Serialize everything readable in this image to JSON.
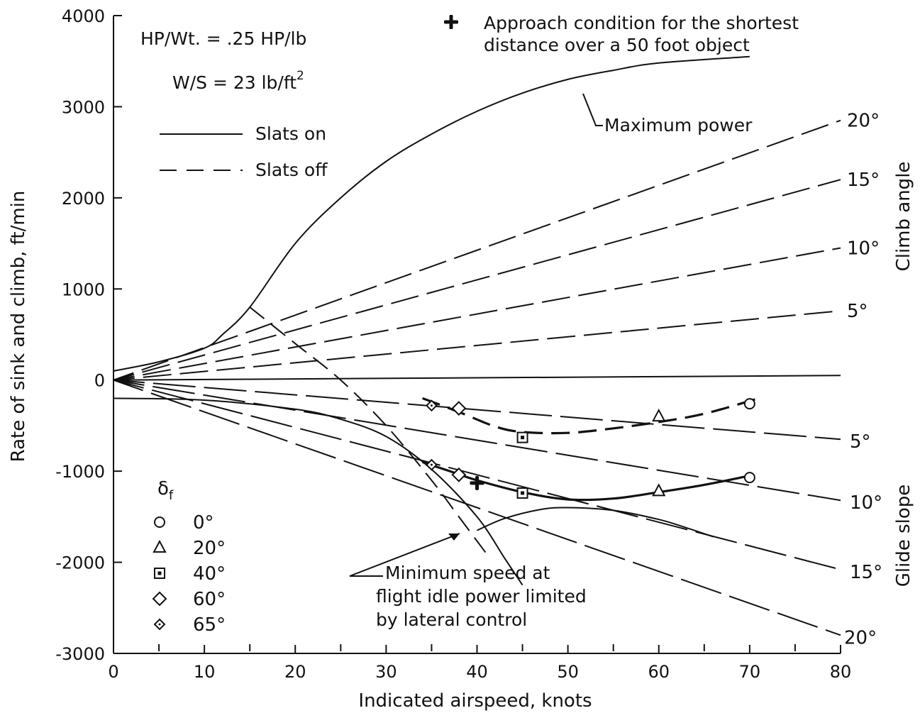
{
  "chart_data": {
    "type": "line",
    "title": "",
    "xlabel": "Indicated airspeed, knots",
    "ylabel": "Rate of sink and climb, ft/min",
    "xlim": [
      0,
      80
    ],
    "ylim": [
      -3000,
      4000
    ],
    "x_ticks": [
      0,
      10,
      20,
      30,
      40,
      50,
      60,
      70,
      80
    ],
    "y_ticks": [
      -3000,
      -2000,
      -1000,
      0,
      1000,
      2000,
      3000,
      4000
    ],
    "notes": {
      "power_loading": "HP/Wt. = .25 HP/lb",
      "wing_loading": "W/S = 23 lb/ft",
      "wing_loading_exp": "2",
      "approach_line1": "Approach condition for the shortest",
      "approach_line2": "distance over a 50 foot object",
      "max_power": "Maximum power",
      "min_speed_line1": "Minimum speed at",
      "min_speed_line2": "flight idle power limited",
      "min_speed_line3": "by lateral control"
    },
    "legend": {
      "slats_on": "Slats on",
      "slats_off": "Slats off",
      "flap_symbol": "δ",
      "flap_sub": "f"
    },
    "angle_axis": {
      "climb_title": "Climb angle",
      "glide_title": "Glide slope",
      "climb_labels": [
        "20°",
        "15°",
        "10°",
        "5°"
      ],
      "glide_labels": [
        "5°",
        "10°",
        "15°",
        "20°"
      ]
    },
    "flap_settings": [
      {
        "label": "0°",
        "marker": "circle"
      },
      {
        "label": "20°",
        "marker": "triangle"
      },
      {
        "label": "40°",
        "marker": "square"
      },
      {
        "label": "60°",
        "marker": "diamond"
      },
      {
        "label": "65°",
        "marker": "diamond-small"
      }
    ],
    "series": [
      {
        "name": "Maximum power",
        "points": [
          [
            0,
            100
          ],
          [
            5,
            200
          ],
          [
            10,
            350
          ],
          [
            12,
            500
          ],
          [
            15,
            800
          ],
          [
            20,
            1500
          ],
          [
            25,
            2000
          ],
          [
            30,
            2400
          ],
          [
            35,
            2700
          ],
          [
            40,
            2950
          ],
          [
            45,
            3150
          ],
          [
            50,
            3300
          ],
          [
            55,
            3400
          ],
          [
            60,
            3480
          ],
          [
            70,
            3550
          ]
        ]
      },
      {
        "name": "Slats off",
        "points": [
          [
            15,
            800
          ],
          [
            20,
            400
          ],
          [
            25,
            0
          ],
          [
            30,
            -500
          ],
          [
            35,
            -1100
          ],
          [
            38,
            -1500
          ],
          [
            41,
            -1900
          ]
        ]
      },
      {
        "name": "Slats on",
        "points": [
          [
            0,
            -200
          ],
          [
            10,
            -220
          ],
          [
            20,
            -320
          ],
          [
            25,
            -430
          ],
          [
            30,
            -620
          ],
          [
            35,
            -980
          ],
          [
            40,
            -1500
          ],
          [
            43,
            -1950
          ],
          [
            45,
            -2250
          ]
        ]
      },
      {
        "name": "Slats on",
        "points": [
          [
            40,
            -1650
          ],
          [
            43,
            -1520
          ],
          [
            47,
            -1420
          ],
          [
            50,
            -1400
          ],
          [
            55,
            -1430
          ],
          [
            60,
            -1530
          ],
          [
            63,
            -1620
          ],
          [
            66,
            -1720
          ]
        ]
      },
      {
        "name": "Slats off",
        "points": [
          [
            34,
            -200
          ],
          [
            38,
            -350
          ],
          [
            42,
            -510
          ],
          [
            45,
            -570
          ],
          [
            50,
            -580
          ],
          [
            55,
            -530
          ],
          [
            60,
            -460
          ],
          [
            65,
            -370
          ],
          [
            71,
            -200
          ]
        ]
      },
      {
        "name": "Slats on",
        "points": [
          [
            34,
            -900
          ],
          [
            37,
            -1000
          ],
          [
            40,
            -1100
          ],
          [
            45,
            -1230
          ],
          [
            50,
            -1310
          ],
          [
            55,
            -1300
          ],
          [
            60,
            -1230
          ],
          [
            65,
            -1150
          ],
          [
            70,
            -1050
          ]
        ]
      }
    ],
    "climb_rays": [
      {
        "label": "20°",
        "end": [
          80,
          2850
        ]
      },
      {
        "label": "15°",
        "end": [
          80,
          2200
        ]
      },
      {
        "label": "10°",
        "end": [
          80,
          1450
        ]
      },
      {
        "label": "5°",
        "end": [
          80,
          760
        ]
      },
      {
        "label": "",
        "end": [
          80,
          50
        ]
      }
    ],
    "glide_rays": [
      {
        "label": "5°",
        "end": [
          80,
          -650
        ]
      },
      {
        "label": "10°",
        "end": [
          80,
          -1320
        ]
      },
      {
        "label": "15°",
        "end": [
          80,
          -2080
        ]
      },
      {
        "label": "20°",
        "end": [
          80,
          -2800
        ]
      }
    ],
    "data_points": {
      "slats_off": [
        {
          "x": 35,
          "y": -280,
          "marker": "diamond-small"
        },
        {
          "x": 38,
          "y": -310,
          "marker": "diamond"
        },
        {
          "x": 45,
          "y": -630,
          "marker": "square"
        },
        {
          "x": 60,
          "y": -400,
          "marker": "triangle"
        },
        {
          "x": 70,
          "y": -260,
          "marker": "circle"
        }
      ],
      "slats_on": [
        {
          "x": 35,
          "y": -930,
          "marker": "diamond-small"
        },
        {
          "x": 38,
          "y": -1040,
          "marker": "diamond"
        },
        {
          "x": 45,
          "y": -1240,
          "marker": "square"
        },
        {
          "x": 60,
          "y": -1220,
          "marker": "triangle"
        },
        {
          "x": 70,
          "y": -1070,
          "marker": "circle"
        }
      ],
      "approach_condition": {
        "x": 40,
        "y": -1130
      }
    }
  }
}
